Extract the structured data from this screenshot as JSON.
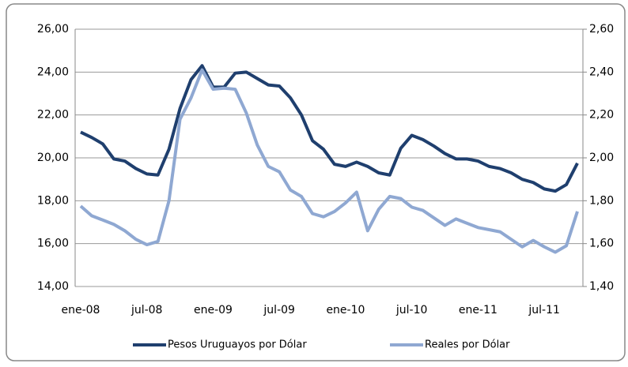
{
  "chart_data": {
    "type": "line",
    "categories": [
      "ene-08",
      null,
      null,
      null,
      null,
      null,
      "jul-08",
      null,
      null,
      null,
      null,
      null,
      "ene-09",
      null,
      null,
      null,
      null,
      null,
      "jul-09",
      null,
      null,
      null,
      null,
      null,
      "ene-10",
      null,
      null,
      null,
      null,
      null,
      "jul-10",
      null,
      null,
      null,
      null,
      null,
      "ene-11",
      null,
      null,
      null,
      null,
      null,
      "jul-11",
      null,
      null,
      null
    ],
    "series": [
      {
        "name": "Pesos Uruguayos por Dólar",
        "color": "#1f3f6e",
        "values": [
          21.2,
          20.95,
          20.65,
          19.95,
          19.85,
          19.5,
          19.25,
          19.2,
          20.4,
          22.3,
          23.65,
          24.3,
          23.3,
          23.3,
          23.95,
          24.0,
          23.7,
          23.4,
          23.35,
          22.8,
          22.0,
          20.8,
          20.4,
          19.7,
          19.6,
          19.8,
          19.6,
          19.3,
          19.2,
          20.45,
          21.05,
          20.85,
          20.55,
          20.2,
          19.95,
          19.95,
          19.85,
          19.6,
          19.5,
          19.3,
          19.0,
          18.85,
          18.55,
          18.45,
          18.75,
          19.75
        ]
      },
      {
        "name": "Reales por Dólar",
        "color": "#8fa8d2",
        "axis": "y2",
        "values": [
          1.775,
          1.73,
          1.71,
          1.69,
          1.66,
          1.62,
          1.595,
          1.61,
          1.8,
          2.18,
          2.28,
          2.41,
          2.32,
          2.325,
          2.32,
          2.21,
          2.06,
          1.96,
          1.935,
          1.85,
          1.82,
          1.74,
          1.725,
          1.75,
          1.79,
          1.84,
          1.66,
          1.76,
          1.82,
          1.81,
          1.77,
          1.755,
          1.72,
          1.685,
          1.715,
          1.695,
          1.675,
          1.665,
          1.655,
          1.62,
          1.585,
          1.615,
          1.585,
          1.56,
          1.59,
          1.75
        ]
      }
    ],
    "ylim": [
      14,
      26
    ],
    "yticks": [
      {
        "value": 14,
        "label": "14,00"
      },
      {
        "value": 16,
        "label": "16,00"
      },
      {
        "value": 18,
        "label": "18,00"
      },
      {
        "value": 20,
        "label": "20,00"
      },
      {
        "value": 22,
        "label": "22,00"
      },
      {
        "value": 24,
        "label": "24,00"
      },
      {
        "value": 26,
        "label": "26,00"
      }
    ],
    "y2lim": [
      1.4,
      2.6
    ],
    "y2ticks": [
      {
        "value": 1.4,
        "label": "1,40"
      },
      {
        "value": 1.6,
        "label": "1,60"
      },
      {
        "value": 1.8,
        "label": "1,80"
      },
      {
        "value": 2.0,
        "label": "2,00"
      },
      {
        "value": 2.2,
        "label": "2,20"
      },
      {
        "value": 2.4,
        "label": "2,40"
      },
      {
        "value": 2.6,
        "label": "2,60"
      }
    ],
    "grid": true,
    "legend": "bottom"
  }
}
